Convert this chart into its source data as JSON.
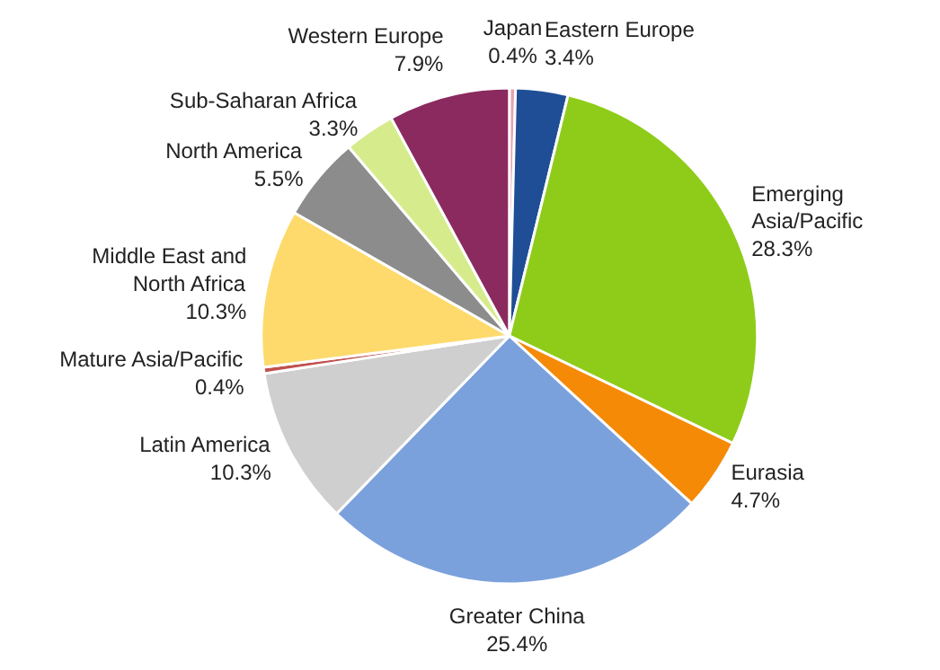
{
  "chart_data": {
    "type": "pie",
    "categories": [
      "Japan",
      "Eastern Europe",
      "Emerging Asia/Pacific",
      "Eurasia",
      "Greater China",
      "Latin America",
      "Mature Asia/Pacific",
      "Middle East and North Africa",
      "North America",
      "Sub-Saharan Africa",
      "Western Europe"
    ],
    "values": [
      0.4,
      3.4,
      28.3,
      4.7,
      25.4,
      10.3,
      0.4,
      10.3,
      5.5,
      3.3,
      7.9
    ],
    "colors": [
      "#e6a3b4",
      "#1f4e96",
      "#8fcc1a",
      "#f58a07",
      "#7ba1dc",
      "#cfcfcf",
      "#c0504d",
      "#fdda6b",
      "#8c8c8c",
      "#d6ec8c",
      "#8b2a5f"
    ],
    "value_labels": [
      "0.4%",
      "3.4%",
      "28.3%",
      "4.7%",
      "25.4%",
      "10.3%",
      "0.4%",
      "10.3%",
      "5.5%",
      "3.3%",
      "7.9%"
    ]
  }
}
